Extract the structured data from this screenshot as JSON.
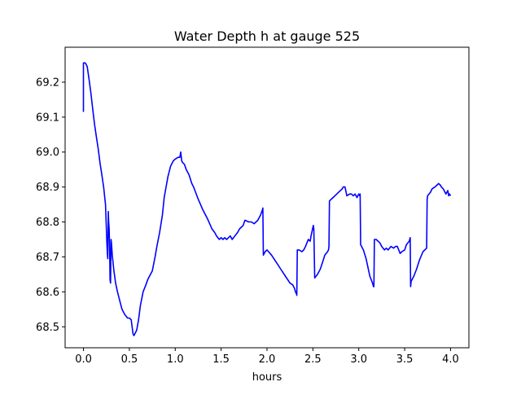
{
  "chart_data": {
    "type": "line",
    "title": "Water Depth h at gauge 525",
    "xlabel": "hours",
    "ylabel": "",
    "xlim": [
      -0.2,
      4.2
    ],
    "ylim": [
      68.44,
      69.3
    ],
    "xticks": [
      "0.0",
      "0.5",
      "1.0",
      "1.5",
      "2.0",
      "2.5",
      "3.0",
      "3.5",
      "4.0"
    ],
    "yticks": [
      "68.5",
      "68.6",
      "68.7",
      "68.8",
      "68.9",
      "69.0",
      "69.1",
      "69.2"
    ],
    "grid": false,
    "series": [
      {
        "color": "#0000ff",
        "x": [
          0.0,
          0.0,
          0.02,
          0.04,
          0.06,
          0.08,
          0.1,
          0.12,
          0.14,
          0.16,
          0.18,
          0.2,
          0.22,
          0.24,
          0.255,
          0.26,
          0.265,
          0.27,
          0.275,
          0.28,
          0.285,
          0.29,
          0.295,
          0.3,
          0.305,
          0.31,
          0.315,
          0.32,
          0.33,
          0.35,
          0.37,
          0.4,
          0.42,
          0.45,
          0.48,
          0.5,
          0.52,
          0.53,
          0.54,
          0.55,
          0.56,
          0.58,
          0.6,
          0.62,
          0.65,
          0.68,
          0.7,
          0.72,
          0.75,
          0.78,
          0.8,
          0.83,
          0.86,
          0.88,
          0.9,
          0.92,
          0.95,
          0.98,
          1.0,
          1.03,
          1.05,
          1.06,
          1.07,
          1.08,
          1.1,
          1.12,
          1.15,
          1.18,
          1.2,
          1.25,
          1.3,
          1.35,
          1.4,
          1.43,
          1.45,
          1.48,
          1.5,
          1.52,
          1.54,
          1.56,
          1.58,
          1.6,
          1.62,
          1.65,
          1.68,
          1.7,
          1.72,
          1.74,
          1.76,
          1.8,
          1.83,
          1.86,
          1.88,
          1.9,
          1.93,
          1.95,
          1.955,
          1.96,
          1.98,
          2.0,
          2.05,
          2.1,
          2.15,
          2.2,
          2.25,
          2.28,
          2.3,
          2.31,
          2.32,
          2.325,
          2.33,
          2.35,
          2.38,
          2.4,
          2.42,
          2.45,
          2.47,
          2.48,
          2.5,
          2.505,
          2.51,
          2.52,
          2.55,
          2.58,
          2.6,
          2.63,
          2.66,
          2.67,
          2.675,
          2.68,
          2.7,
          2.72,
          2.74,
          2.76,
          2.78,
          2.8,
          2.82,
          2.83,
          2.85,
          2.87,
          2.9,
          2.92,
          2.94,
          2.96,
          2.98,
          3.0,
          3.01,
          3.015,
          3.02,
          3.05,
          3.08,
          3.1,
          3.12,
          3.15,
          3.16,
          3.165,
          3.17,
          3.19,
          3.21,
          3.23,
          3.25,
          3.28,
          3.3,
          3.32,
          3.35,
          3.38,
          3.4,
          3.42,
          3.45,
          3.47,
          3.5,
          3.52,
          3.55,
          3.56,
          3.565,
          3.57,
          3.6,
          3.63,
          3.66,
          3.7,
          3.74,
          3.745,
          3.75,
          3.78,
          3.8,
          3.83,
          3.85,
          3.87,
          3.89,
          3.9,
          3.92,
          3.95,
          3.97,
          3.98,
          3.99,
          4.0
        ],
        "y": [
          69.115,
          69.255,
          69.255,
          69.245,
          69.21,
          69.17,
          69.125,
          69.08,
          69.045,
          69.01,
          68.97,
          68.935,
          68.9,
          68.85,
          68.74,
          68.71,
          68.695,
          68.83,
          68.8,
          68.78,
          68.72,
          68.635,
          68.625,
          68.75,
          68.74,
          68.72,
          68.7,
          68.69,
          68.665,
          68.625,
          68.6,
          68.57,
          68.55,
          68.535,
          68.525,
          68.525,
          68.52,
          68.5,
          68.48,
          68.475,
          68.48,
          68.49,
          68.52,
          68.56,
          68.6,
          68.62,
          68.635,
          68.645,
          68.66,
          68.7,
          68.73,
          68.77,
          68.82,
          68.87,
          68.9,
          68.93,
          68.96,
          68.975,
          68.98,
          68.985,
          68.985,
          69.0,
          68.975,
          68.97,
          68.965,
          68.95,
          68.935,
          68.91,
          68.9,
          68.865,
          68.835,
          68.81,
          68.78,
          68.77,
          68.76,
          68.75,
          68.755,
          68.75,
          68.755,
          68.75,
          68.755,
          68.76,
          68.75,
          68.76,
          68.77,
          68.78,
          68.785,
          68.79,
          68.805,
          68.8,
          68.8,
          68.795,
          68.8,
          68.805,
          68.82,
          68.835,
          68.84,
          68.705,
          68.715,
          68.72,
          68.705,
          68.685,
          68.665,
          68.645,
          68.625,
          68.62,
          68.61,
          68.6,
          68.595,
          68.59,
          68.72,
          68.72,
          68.715,
          68.72,
          68.73,
          68.75,
          68.745,
          68.76,
          68.785,
          68.79,
          68.78,
          68.64,
          68.65,
          68.665,
          68.68,
          68.705,
          68.715,
          68.72,
          68.73,
          68.86,
          68.865,
          68.87,
          68.875,
          68.88,
          68.885,
          68.89,
          68.895,
          68.9,
          68.9,
          68.875,
          68.88,
          68.88,
          68.875,
          68.88,
          68.87,
          68.88,
          68.875,
          68.88,
          68.735,
          68.72,
          68.695,
          68.67,
          68.645,
          68.625,
          68.615,
          68.615,
          68.75,
          68.75,
          68.745,
          68.74,
          68.73,
          68.72,
          68.725,
          68.72,
          68.73,
          68.725,
          68.73,
          68.73,
          68.71,
          68.715,
          68.72,
          68.735,
          68.745,
          68.755,
          68.615,
          68.63,
          68.645,
          68.665,
          68.69,
          68.715,
          68.725,
          68.865,
          68.875,
          68.885,
          68.895,
          68.9,
          68.905,
          68.91,
          68.905,
          68.9,
          68.895,
          68.88,
          68.89,
          68.875,
          68.88,
          68.875
        ]
      }
    ]
  }
}
